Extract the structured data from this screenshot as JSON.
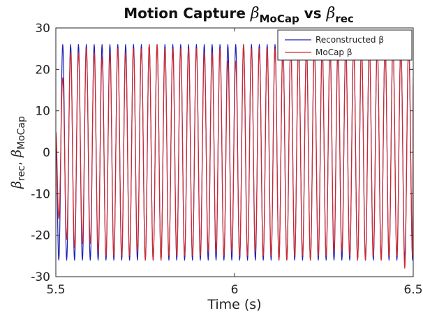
{
  "chart_data": {
    "type": "line",
    "title": {
      "prefix": "Motion Capture ",
      "sym1": "β",
      "sub1": "MoCap",
      "mid": " vs ",
      "sym2": "β",
      "sub2": "rec"
    },
    "xlabel": "Time (s)",
    "ylabel": {
      "sym1": "β",
      "sub1": "rec",
      "sep": ", ",
      "sym2": "β",
      "sub2": "MoCap"
    },
    "xlim": [
      5.5,
      6.5
    ],
    "ylim": [
      -30,
      30
    ],
    "xticks": [
      {
        "value": 5.5,
        "label": "5.5"
      },
      {
        "value": 6.0,
        "label": "6"
      },
      {
        "value": 6.5,
        "label": "6.5"
      }
    ],
    "yticks": [
      {
        "value": 30,
        "label": "30"
      },
      {
        "value": 20,
        "label": "20"
      },
      {
        "value": 10,
        "label": "10"
      },
      {
        "value": 0,
        "label": "0"
      },
      {
        "value": -10,
        "label": "-10"
      },
      {
        "value": -20,
        "label": "-20"
      },
      {
        "value": -30,
        "label": "-30"
      }
    ],
    "grid": false,
    "legend_position": "top-right",
    "series": [
      {
        "name": "Reconstructed β",
        "color": "#1f1fb4",
        "x": [
          5.5,
          5.5083,
          5.5193,
          5.5303,
          5.5413,
          5.5523,
          5.5633,
          5.5743,
          5.5853,
          5.5963,
          5.6073,
          5.6183,
          5.6293,
          5.6403,
          5.6513,
          5.6623,
          5.6733,
          5.6843,
          5.6953,
          5.7063,
          5.7173,
          5.7283,
          5.7393,
          5.7503,
          5.7613,
          5.7723,
          5.7833,
          5.7943,
          5.8053,
          5.8163,
          5.8273,
          5.8383,
          5.8493,
          5.8603,
          5.8713,
          5.8823,
          5.8933,
          5.9043,
          5.9153,
          5.9263,
          5.9373,
          5.9483,
          5.9593,
          5.9703,
          5.9813,
          5.9923,
          6.0033,
          6.0143,
          6.0253,
          6.0363,
          6.0473,
          6.0583,
          6.0693,
          6.0803,
          6.0913,
          6.1023,
          6.1133,
          6.1243,
          6.1353,
          6.1463,
          6.1573,
          6.1683,
          6.1793,
          6.1903,
          6.2013,
          6.2123,
          6.2233,
          6.2343,
          6.2453,
          6.2563,
          6.2673,
          6.2783,
          6.2893,
          6.3003,
          6.3113,
          6.3223,
          6.3333,
          6.3443,
          6.3553,
          6.3663,
          6.3773,
          6.3883,
          6.3993,
          6.4103,
          6.4213,
          6.4323,
          6.4433,
          6.4543,
          6.4653,
          6.4763,
          6.4873,
          6.4983,
          6.5
        ],
        "y": [
          3,
          -26,
          26,
          -26,
          26,
          -26,
          26,
          -26,
          26,
          -26,
          26,
          -26,
          26,
          -26,
          26,
          -26,
          26,
          -26,
          26,
          -26,
          26,
          -26,
          26,
          -26,
          26,
          -26,
          26,
          -26,
          26,
          -26,
          26,
          -26,
          26,
          -26,
          26,
          -26,
          26,
          -26,
          26,
          -26,
          26,
          -26,
          26,
          -26,
          26,
          -26,
          26,
          -26,
          26,
          -26,
          26,
          -26,
          26,
          -26,
          26,
          -26,
          26,
          -26,
          26,
          -26,
          26,
          -26,
          26,
          -26,
          26,
          -26,
          26,
          -26,
          26,
          -26,
          26,
          -26,
          26,
          -26,
          26,
          -26,
          26,
          -26,
          26,
          -26,
          26,
          -26,
          26,
          -26,
          26,
          -26,
          26,
          -26,
          26,
          -26,
          26,
          -26,
          16
        ]
      },
      {
        "name": "MoCap β",
        "color": "#d42a2a",
        "x": [
          5.5,
          5.5083,
          5.5193,
          5.5303,
          5.5413,
          5.5523,
          5.5633,
          5.5743,
          5.5853,
          5.5963,
          5.6073,
          5.6183,
          5.6293,
          5.6403,
          5.6513,
          5.6623,
          5.6733,
          5.6843,
          5.6953,
          5.7063,
          5.7173,
          5.7283,
          5.7393,
          5.7503,
          5.7613,
          5.7723,
          5.7833,
          5.7943,
          5.8053,
          5.8163,
          5.8273,
          5.8383,
          5.8493,
          5.8603,
          5.8713,
          5.8823,
          5.8933,
          5.9043,
          5.9153,
          5.9263,
          5.9373,
          5.9483,
          5.9593,
          5.9703,
          5.9813,
          5.9923,
          6.0033,
          6.0143,
          6.0253,
          6.0363,
          6.0473,
          6.0583,
          6.0693,
          6.0803,
          6.0913,
          6.1023,
          6.1133,
          6.1243,
          6.1353,
          6.1463,
          6.1573,
          6.1683,
          6.1793,
          6.1903,
          6.2013,
          6.2123,
          6.2233,
          6.2343,
          6.2453,
          6.2563,
          6.2673,
          6.2783,
          6.2893,
          6.3003,
          6.3113,
          6.3223,
          6.3333,
          6.3443,
          6.3553,
          6.3663,
          6.3773,
          6.3883,
          6.3993,
          6.4103,
          6.4213,
          6.4323,
          6.4433,
          6.4543,
          6.4653,
          6.4763,
          6.4873,
          6.4983,
          6.5
        ],
        "y": [
          5,
          -16,
          18,
          -21,
          24,
          -23,
          24,
          -22,
          25,
          -22,
          24,
          -24,
          23,
          -25,
          24,
          -25,
          25,
          -25,
          24,
          -25,
          25,
          -24,
          25,
          -26,
          26,
          -26,
          26,
          -26,
          25,
          -25,
          25,
          -25,
          25,
          -25,
          25,
          -25,
          25,
          -25,
          24,
          -24,
          24,
          -24,
          25,
          -25,
          22,
          -24,
          22,
          -25,
          26,
          -25,
          25,
          -24,
          25,
          -25,
          25,
          -25,
          25,
          -26,
          26,
          -26,
          26,
          -25,
          26,
          -25,
          25,
          -26,
          25,
          -25,
          25,
          -25,
          25,
          -24,
          24,
          -24,
          25,
          -25,
          26,
          -26,
          26,
          -26,
          26,
          -25,
          26,
          -26,
          26,
          -25,
          26,
          -25,
          26,
          -28,
          26,
          -25,
          18
        ]
      }
    ]
  }
}
